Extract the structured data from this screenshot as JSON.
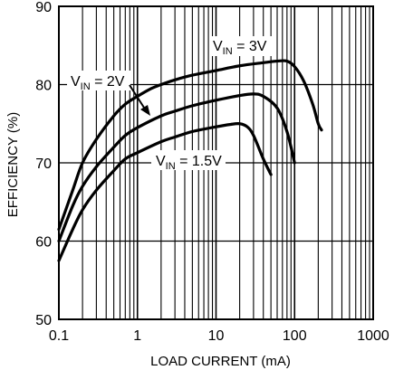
{
  "chart_data": {
    "type": "line",
    "xlabel": "LOAD CURRENT (mA)",
    "ylabel": "EFFICIENCY (%)",
    "x_scale": "log",
    "xlim": [
      0.1,
      1000
    ],
    "ylim": [
      50,
      90
    ],
    "x_ticks": [
      0.1,
      1,
      10,
      100,
      1000
    ],
    "x_tick_labels": [
      "0.1",
      "1",
      "10",
      "100",
      "1000"
    ],
    "y_ticks": [
      50,
      60,
      70,
      80,
      90
    ],
    "y_tick_labels": [
      "50",
      "60",
      "70",
      "80",
      "90"
    ],
    "grid": true,
    "series": [
      {
        "name": "VIN = 3V",
        "label_main": "V",
        "label_sub": "IN",
        "label_tail": " = 3V",
        "color": "#000000",
        "points": [
          [
            0.1,
            61.5
          ],
          [
            0.15,
            66.5
          ],
          [
            0.2,
            70
          ],
          [
            0.3,
            73
          ],
          [
            0.5,
            76
          ],
          [
            0.7,
            77.5
          ],
          [
            1,
            78.5
          ],
          [
            1.5,
            79.5
          ],
          [
            2,
            80
          ],
          [
            3,
            80.6
          ],
          [
            5,
            81.2
          ],
          [
            10,
            81.8
          ],
          [
            20,
            82.4
          ],
          [
            40,
            82.8
          ],
          [
            60,
            83
          ],
          [
            80,
            83
          ],
          [
            100,
            82.3
          ],
          [
            130,
            80.5
          ],
          [
            170,
            77.5
          ],
          [
            200,
            75
          ],
          [
            220,
            74.2
          ]
        ]
      },
      {
        "name": "VIN = 2V",
        "label_main": "V",
        "label_sub": "IN",
        "label_tail": " = 2V",
        "color": "#000000",
        "points": [
          [
            0.1,
            60
          ],
          [
            0.15,
            64.5
          ],
          [
            0.2,
            67
          ],
          [
            0.3,
            69.5
          ],
          [
            0.5,
            72
          ],
          [
            0.7,
            73.5
          ],
          [
            1,
            74.5
          ],
          [
            2,
            76
          ],
          [
            3,
            76.6
          ],
          [
            5,
            77.3
          ],
          [
            10,
            78
          ],
          [
            20,
            78.6
          ],
          [
            30,
            78.8
          ],
          [
            40,
            78.5
          ],
          [
            60,
            77
          ],
          [
            80,
            74
          ],
          [
            100,
            70
          ]
        ]
      },
      {
        "name": "VIN = 1.5V",
        "label_main": "V",
        "label_sub": "IN",
        "label_tail": " = 1.5V",
        "color": "#000000",
        "points": [
          [
            0.1,
            57.5
          ],
          [
            0.15,
            61.5
          ],
          [
            0.2,
            64
          ],
          [
            0.3,
            66.5
          ],
          [
            0.5,
            69
          ],
          [
            0.7,
            70.5
          ],
          [
            1,
            71.3
          ],
          [
            2,
            72.7
          ],
          [
            3,
            73.3
          ],
          [
            5,
            74
          ],
          [
            10,
            74.6
          ],
          [
            15,
            74.9
          ],
          [
            20,
            75
          ],
          [
            25,
            74.6
          ],
          [
            30,
            73.5
          ],
          [
            40,
            70.5
          ],
          [
            50,
            68.5
          ]
        ]
      }
    ]
  }
}
